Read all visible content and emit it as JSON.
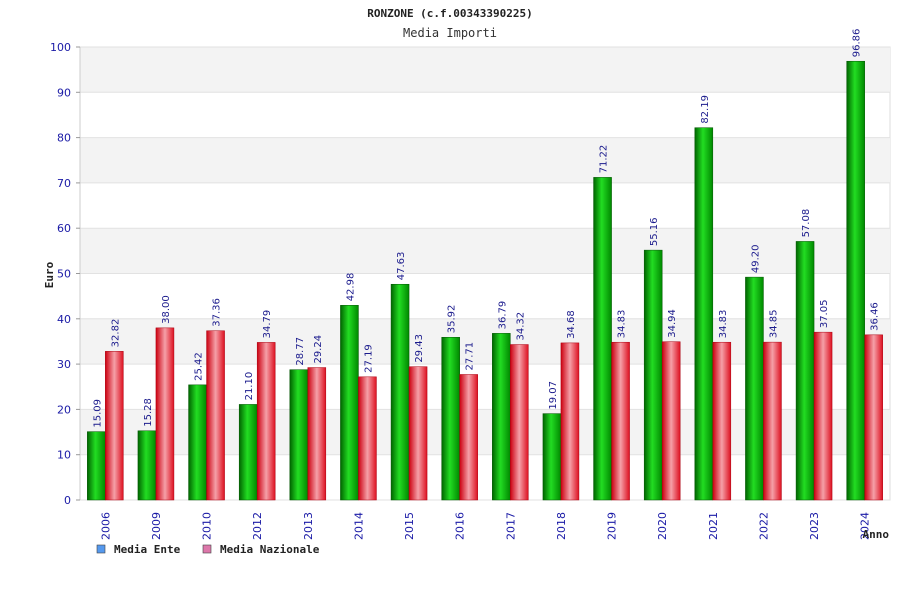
{
  "chart_data": {
    "type": "bar",
    "title": "RONZONE (c.f.00343390225)",
    "subtitle": "Media Importi",
    "xlabel": "Anno",
    "ylabel": "Euro",
    "ylim": [
      0,
      100
    ],
    "yticks": [
      0,
      10,
      20,
      30,
      40,
      50,
      60,
      70,
      80,
      90,
      100
    ],
    "grid": true,
    "legend_position": "bottom-left",
    "categories": [
      "2006",
      "2009",
      "2010",
      "2012",
      "2013",
      "2014",
      "2015",
      "2016",
      "2017",
      "2018",
      "2019",
      "2020",
      "2021",
      "2022",
      "2023",
      "2024"
    ],
    "series": [
      {
        "name": "Media Ente",
        "color": "#00b400",
        "legend_color": "#5599ee",
        "values": [
          15.09,
          15.28,
          25.42,
          21.1,
          28.77,
          42.98,
          47.63,
          35.92,
          36.79,
          19.07,
          71.22,
          55.16,
          82.19,
          49.2,
          57.08,
          96.86
        ],
        "labels": [
          "15.09",
          "15.28",
          "25.42",
          "21.10",
          "28.77",
          "42.98",
          "47.63",
          "35.92",
          "36.79",
          "19.07",
          "71.22",
          "55.16",
          "82.19",
          "49.20",
          "57.08",
          "96.86"
        ]
      },
      {
        "name": "Media Nazionale",
        "color": "#e8202a",
        "legend_color": "#dd77aa",
        "values": [
          32.82,
          38.0,
          37.36,
          34.79,
          29.24,
          27.19,
          29.43,
          27.71,
          34.32,
          34.68,
          34.83,
          34.94,
          34.83,
          34.85,
          37.05,
          36.46
        ],
        "labels": [
          "32.82",
          "38.00",
          "37.36",
          "34.79",
          "29.24",
          "27.19",
          "29.43",
          "27.71",
          "34.32",
          "34.68",
          "34.83",
          "34.94",
          "34.83",
          "34.85",
          "37.05",
          "36.46"
        ]
      }
    ]
  }
}
